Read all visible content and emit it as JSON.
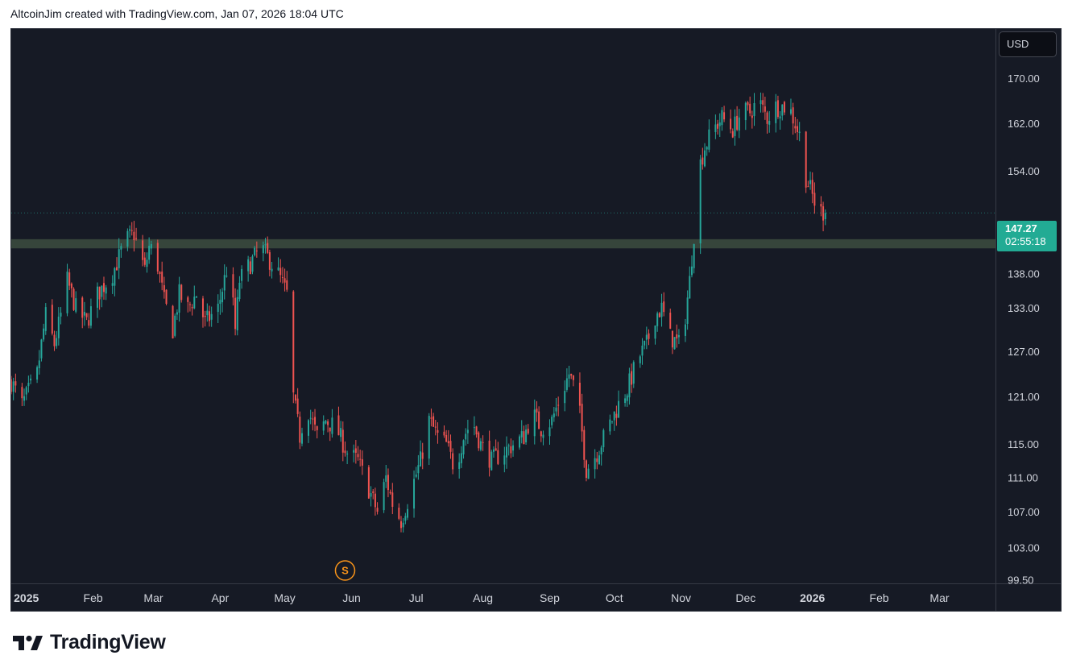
{
  "header": {
    "attribution": "AltcoinJim created with TradingView.com, Jan 07, 2026 18:04 UTC"
  },
  "currency_button": {
    "label": "USD"
  },
  "last_price": {
    "value": "147.27",
    "countdown": "02:55:18"
  },
  "colors": {
    "background": "#161a25",
    "up": "#26a69a",
    "down": "#ef5350",
    "zone": "#3a4a3e",
    "axis_text": "#d1d4dc",
    "price_tag": "#22ab94",
    "event_marker": "#f7931a"
  },
  "event_marker": {
    "label": "S",
    "date": "2025-05-29"
  },
  "footer": {
    "brand": "TradingView"
  },
  "chart_data": {
    "type": "candlestick",
    "x_axis": {
      "range": [
        "2024-12-25",
        "2026-03-27"
      ],
      "tick_labels": [
        "2025",
        "Feb",
        "Mar",
        "Apr",
        "May",
        "Jun",
        "Jul",
        "Aug",
        "Sep",
        "Oct",
        "Nov",
        "Dec",
        "2026",
        "Feb",
        "Mar"
      ],
      "tick_dates": [
        "2025-01-01",
        "2025-02-01",
        "2025-03-01",
        "2025-04-01",
        "2025-05-01",
        "2025-06-01",
        "2025-07-01",
        "2025-08-01",
        "2025-09-01",
        "2025-10-01",
        "2025-11-01",
        "2025-12-01",
        "2026-01-01",
        "2026-02-01",
        "2026-03-01"
      ],
      "bold_labels": [
        "2025",
        "2026"
      ]
    },
    "y_axis": {
      "scale": "log",
      "range": [
        99.5,
        178
      ],
      "tick_labels": [
        "170.00",
        "162.00",
        "154.00",
        "138.00",
        "133.00",
        "127.00",
        "121.00",
        "115.00",
        "111.00",
        "107.00",
        "103.00",
        "99.50"
      ],
      "tick_values": [
        170,
        162,
        154,
        138,
        133,
        127,
        121,
        115,
        111,
        107,
        103,
        99.5
      ]
    },
    "horizontal_zone": {
      "from": 141.8,
      "to": 143.2
    },
    "grid": false,
    "anchors": [
      [
        "2024-12-25",
        123
      ],
      [
        "2024-12-30",
        120
      ],
      [
        "2025-01-06",
        124
      ],
      [
        "2025-01-10",
        132
      ],
      [
        "2025-01-14",
        128
      ],
      [
        "2025-01-17",
        132
      ],
      [
        "2025-01-20",
        137
      ],
      [
        "2025-01-24",
        133
      ],
      [
        "2025-01-29",
        131
      ],
      [
        "2025-02-03",
        135
      ],
      [
        "2025-02-10",
        138
      ],
      [
        "2025-02-16",
        143
      ],
      [
        "2025-02-20",
        144
      ],
      [
        "2025-02-25",
        138.5
      ],
      [
        "2025-02-27",
        142
      ],
      [
        "2025-03-02",
        141
      ],
      [
        "2025-03-06",
        134
      ],
      [
        "2025-03-10",
        130
      ],
      [
        "2025-03-13",
        135
      ],
      [
        "2025-03-17",
        133
      ],
      [
        "2025-03-21",
        135
      ],
      [
        "2025-03-25",
        131
      ],
      [
        "2025-03-31",
        133
      ],
      [
        "2025-04-05",
        140
      ],
      [
        "2025-04-08",
        130
      ],
      [
        "2025-04-10",
        137
      ],
      [
        "2025-04-16",
        140
      ],
      [
        "2025-04-20",
        142
      ],
      [
        "2025-04-24",
        140
      ],
      [
        "2025-04-28",
        138
      ],
      [
        "2025-05-02",
        135
      ],
      [
        "2025-05-05",
        121
      ],
      [
        "2025-05-08",
        116
      ],
      [
        "2025-05-11",
        120
      ],
      [
        "2025-05-16",
        116
      ],
      [
        "2025-05-20",
        118
      ],
      [
        "2025-05-25",
        117
      ],
      [
        "2025-05-30",
        114
      ],
      [
        "2025-06-04",
        113
      ],
      [
        "2025-06-10",
        109
      ],
      [
        "2025-06-13",
        107
      ],
      [
        "2025-06-17",
        111
      ],
      [
        "2025-06-20",
        108
      ],
      [
        "2025-06-24",
        106
      ],
      [
        "2025-06-28",
        109
      ],
      [
        "2025-07-03",
        113
      ],
      [
        "2025-07-07",
        118
      ],
      [
        "2025-07-11",
        116
      ],
      [
        "2025-07-15",
        115
      ],
      [
        "2025-07-19",
        112
      ],
      [
        "2025-07-23",
        116
      ],
      [
        "2025-07-27",
        118
      ],
      [
        "2025-07-31",
        115
      ],
      [
        "2025-08-05",
        113
      ],
      [
        "2025-08-10",
        114
      ],
      [
        "2025-08-15",
        115
      ],
      [
        "2025-08-20",
        116
      ],
      [
        "2025-08-24",
        119
      ],
      [
        "2025-08-28",
        117
      ],
      [
        "2025-09-02",
        118
      ],
      [
        "2025-09-06",
        121
      ],
      [
        "2025-09-10",
        124
      ],
      [
        "2025-09-14",
        121
      ],
      [
        "2025-09-18",
        112
      ],
      [
        "2025-09-23",
        114
      ],
      [
        "2025-09-28",
        117
      ],
      [
        "2025-10-03",
        120
      ],
      [
        "2025-10-07",
        122
      ],
      [
        "2025-10-12",
        126
      ],
      [
        "2025-10-16",
        128
      ],
      [
        "2025-10-20",
        132
      ],
      [
        "2025-10-23",
        133
      ],
      [
        "2025-10-27",
        129
      ],
      [
        "2025-10-31",
        128
      ],
      [
        "2025-11-03",
        132
      ],
      [
        "2025-11-05",
        137
      ],
      [
        "2025-11-07",
        144
      ],
      [
        "2025-11-09",
        154
      ],
      [
        "2025-11-12",
        158
      ],
      [
        "2025-11-16",
        161
      ],
      [
        "2025-11-20",
        163
      ],
      [
        "2025-11-25",
        161
      ],
      [
        "2025-11-29",
        164
      ],
      [
        "2025-12-03",
        164
      ],
      [
        "2025-12-07",
        166
      ],
      [
        "2025-12-11",
        163
      ],
      [
        "2025-12-15",
        165
      ],
      [
        "2025-12-19",
        165
      ],
      [
        "2025-12-22",
        164
      ],
      [
        "2025-12-26",
        160
      ],
      [
        "2025-12-29",
        153
      ],
      [
        "2026-01-02",
        149
      ],
      [
        "2026-01-05",
        147.5
      ],
      [
        "2026-01-07",
        147.27
      ]
    ]
  }
}
